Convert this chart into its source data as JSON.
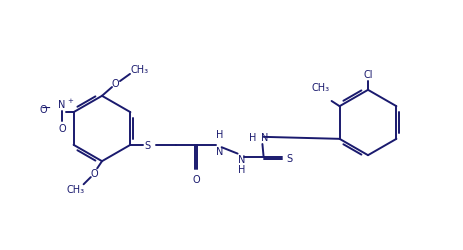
{
  "bg_color": "#ffffff",
  "line_color": "#1a1a6e",
  "text_color": "#1a1a6e",
  "line_width": 1.4,
  "font_size": 7.0,
  "figsize": [
    4.64,
    2.51
  ],
  "dpi": 100,
  "xlim": [
    0,
    11.6
  ],
  "ylim": [
    0,
    6.3
  ]
}
